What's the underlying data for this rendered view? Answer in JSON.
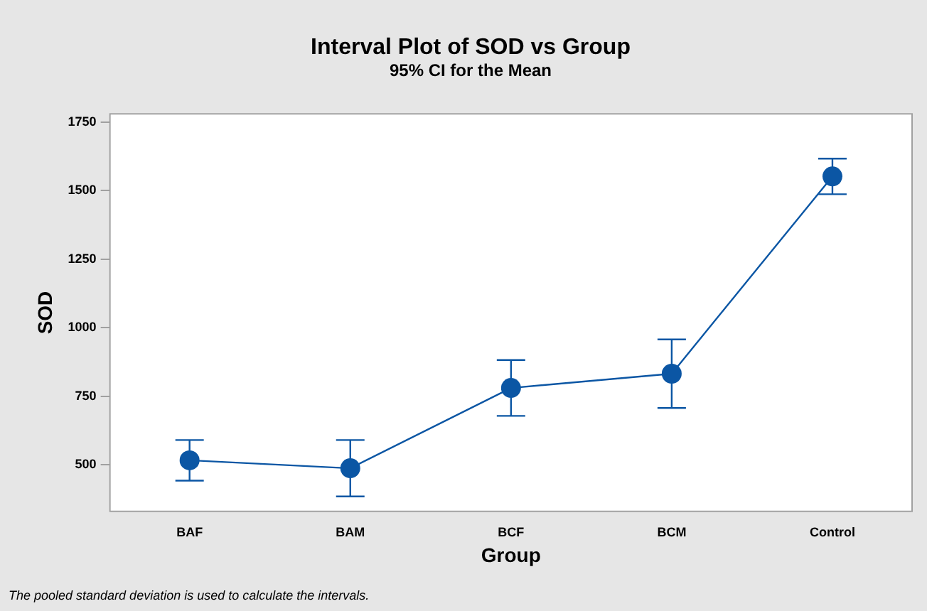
{
  "chart_data": {
    "type": "line",
    "title": "Interval Plot of SOD vs Group",
    "subtitle": "95% CI for the Mean",
    "xlabel": "Group",
    "ylabel": "SOD",
    "categories": [
      "BAF",
      "BAM",
      "BCF",
      "BCM",
      "Control"
    ],
    "series": [
      {
        "color": "#0b56a4",
        "values": [
          516,
          487,
          780,
          832,
          1552
        ],
        "errors": [
          74,
          103,
          102,
          125,
          65
        ]
      }
    ],
    "ylim": [
      327,
      1783
    ],
    "yticks": [
      500,
      750,
      1000,
      1250,
      1500,
      1750
    ],
    "grid": false,
    "legend": false,
    "marker": "circle",
    "line_style": "solid",
    "annotations": [
      "The pooled standard deviation is used to calculate the intervals."
    ]
  }
}
